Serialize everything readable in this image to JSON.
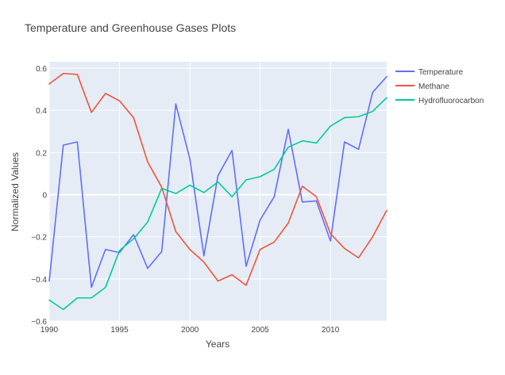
{
  "chart_data": {
    "type": "line",
    "title": "Temperature and Greenhouse Gases Plots",
    "xlabel": "Years",
    "ylabel": "Normalized Values",
    "xlim": [
      1990,
      2014
    ],
    "ylim": [
      -0.6,
      0.63
    ],
    "x_ticks": [
      1990,
      1995,
      2000,
      2005,
      2010
    ],
    "y_ticks": [
      -0.6,
      -0.4,
      -0.2,
      0,
      0.2,
      0.4,
      0.6
    ],
    "grid": true,
    "legend_position": "top-right",
    "plot_bgcolor": "#E5ECF6",
    "x": [
      1990,
      1991,
      1992,
      1993,
      1994,
      1995,
      1996,
      1997,
      1998,
      1999,
      2000,
      2001,
      2002,
      2003,
      2004,
      2005,
      2006,
      2007,
      2008,
      2009,
      2010,
      2011,
      2012,
      2013,
      2014
    ],
    "series": [
      {
        "name": "Temperature",
        "color": "#636EFA",
        "values": [
          -0.41,
          0.235,
          0.25,
          -0.44,
          -0.26,
          -0.275,
          -0.19,
          -0.35,
          -0.27,
          0.43,
          0.17,
          -0.29,
          0.09,
          0.21,
          -0.34,
          -0.12,
          -0.01,
          0.31,
          -0.035,
          -0.03,
          -0.22,
          0.25,
          0.215,
          0.485,
          0.56
        ]
      },
      {
        "name": "Methane",
        "color": "#EF553B",
        "values": [
          0.525,
          0.575,
          0.57,
          0.39,
          0.48,
          0.445,
          0.365,
          0.155,
          0.035,
          -0.175,
          -0.26,
          -0.32,
          -0.41,
          -0.38,
          -0.43,
          -0.26,
          -0.225,
          -0.135,
          0.04,
          -0.01,
          -0.185,
          -0.255,
          -0.3,
          -0.2,
          -0.075
        ]
      },
      {
        "name": "Hydrofluorocarbon",
        "color": "#00CC96",
        "values": [
          -0.5,
          -0.545,
          -0.49,
          -0.49,
          -0.44,
          -0.265,
          -0.21,
          -0.13,
          0.03,
          0.005,
          0.045,
          0.01,
          0.06,
          -0.01,
          0.07,
          0.085,
          0.12,
          0.225,
          0.255,
          0.245,
          0.325,
          0.365,
          0.37,
          0.395,
          0.46
        ]
      }
    ]
  }
}
